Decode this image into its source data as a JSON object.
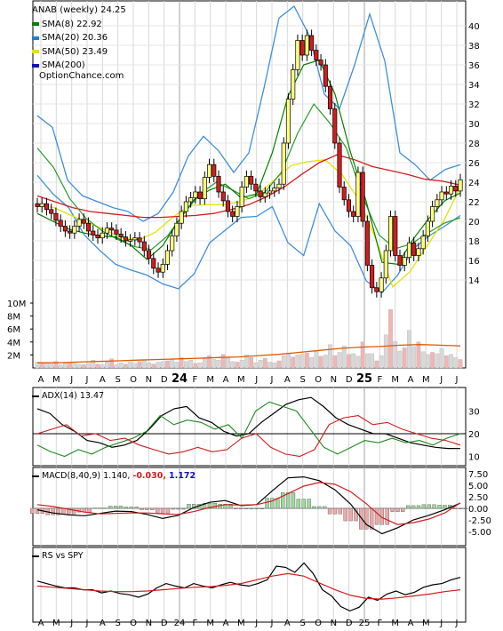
{
  "ticker_title": "ANAB (weekly) 24.25",
  "legend": [
    {
      "label": "SMA(8) 22.92",
      "color": "#008000"
    },
    {
      "label": "SMA(20) 20.36",
      "color": "#1c7fd1"
    },
    {
      "label": "SMA(50) 23.49",
      "color": "#e3e300"
    },
    {
      "label": "SMA(200)",
      "color": "#1010c8"
    }
  ],
  "source": "OptionChance.com",
  "colors": {
    "up": "#ffff80",
    "down": "#d11d1d",
    "bb": "#3f8fd8",
    "sma8": "#008000",
    "sma20": "#1c7fd1",
    "sma50": "#e3e300",
    "sma200": "#d11d1d",
    "volume_up": "#d8d8d8",
    "volume_down": "#f2b4b4",
    "volume_avg": "#e05a00"
  },
  "x_axis": {
    "labels": [
      "A",
      "M",
      "J",
      "J",
      "A",
      "S",
      "O",
      "N",
      "D",
      "24",
      "F",
      "M",
      "A",
      "M",
      "J",
      "J",
      "A",
      "S",
      "O",
      "N",
      "D",
      "25",
      "F",
      "M",
      "A",
      "M",
      "J",
      "J"
    ],
    "year_labels": [
      "24",
      "25"
    ]
  },
  "price_axis": {
    "ticks": [
      "40",
      "38",
      "36",
      "34",
      "32",
      "30",
      "28",
      "26",
      "24",
      "22",
      "20",
      "18",
      "16",
      "14"
    ]
  },
  "volume_axis": {
    "ticks": [
      "10M",
      "8M",
      "6M",
      "4M",
      "2M"
    ]
  },
  "adx_panel": {
    "label": "ADX(14) 13.47",
    "ticks": [
      "30",
      "20",
      "10"
    ]
  },
  "macd_panel": {
    "label": "MACD(8,40,9) 1.140,",
    "value2": "-0.030,",
    "value3": "1.172",
    "ticks": [
      "7.50",
      "5.00",
      "2.50",
      "0.00",
      "-2.50",
      "-5.00"
    ]
  },
  "rs_panel": {
    "label": "RS vs SPY"
  },
  "chart_data": [
    {
      "type": "candlestick",
      "title": "ANAB (weekly) 24.25",
      "ylim": [
        12,
        42
      ],
      "series": [
        {
          "name": "price",
          "values": [
            21.5,
            21.8,
            21.2,
            20.8,
            20.1,
            19.5,
            19.0,
            18.8,
            19.5,
            20.2,
            19.8,
            19.0,
            18.6,
            18.3,
            18.8,
            19.3,
            19.1,
            18.7,
            18.4,
            18.0,
            18.1,
            18.3,
            17.9,
            17.0,
            16.2,
            15.2,
            14.8,
            15.6,
            17.0,
            18.5,
            19.8,
            21.0,
            22.0,
            22.4,
            23.0,
            22.3,
            24.5,
            25.8,
            24.6,
            23.0,
            22.1,
            21.0,
            20.5,
            21.5,
            23.5,
            24.6,
            23.8,
            23.1,
            22.5,
            22.9,
            23.1,
            23.4,
            23.8,
            28.0,
            32.5,
            35.5,
            38.5,
            37.0,
            39.0,
            37.5,
            36.5,
            36.0,
            33.8,
            31.5,
            28.0,
            23.5,
            22.2,
            21.0,
            20.5,
            25.0,
            20.0,
            15.5,
            13.2,
            12.8,
            14.2,
            17.0,
            20.5,
            16.5,
            15.5,
            16.3,
            17.8,
            16.5,
            17.2,
            18.5,
            20.0,
            21.5,
            22.2,
            23.0,
            22.8,
            23.6,
            23.1,
            24.25
          ]
        },
        {
          "name": "SMA(8)",
          "values": [
            20.8,
            20.0,
            19.2,
            18.8,
            18.5,
            18.4,
            17.5,
            16.1,
            17.5,
            20.0,
            22.2,
            23.2,
            23.8,
            22.4,
            22.8,
            27.0,
            32.8,
            36.0,
            36.5,
            33.0,
            27.0,
            22.0,
            15.8,
            15.6,
            18.2,
            20.3,
            22.1,
            22.9
          ]
        },
        {
          "name": "SMA(20)",
          "values": [
            27.5,
            25.5,
            22.3,
            20.3,
            19.0,
            18.1,
            17.4,
            17.1,
            18.5,
            20.8,
            22.8,
            24.0,
            23.2,
            22.3,
            23.0,
            25.0,
            29.0,
            32.0,
            30.0,
            27.5,
            22.5,
            18.6,
            17.2,
            17.7,
            18.8,
            19.8,
            20.36
          ]
        },
        {
          "name": "SMA(50)",
          "values": [
            21.6,
            21.4,
            20.6,
            19.9,
            19.1,
            18.3,
            18.1,
            18.9,
            20.4,
            21.6,
            21.7,
            21.7,
            22.0,
            22.7,
            24.2,
            25.7,
            26.1,
            26.3,
            24.8,
            22.2,
            18.2,
            13.3,
            14.8,
            17.4,
            20.0,
            23.49
          ]
        },
        {
          "name": "SMA(200)",
          "values": [
            22.6,
            22.0,
            21.4,
            21.0,
            20.8,
            20.6,
            20.4,
            20.4,
            20.5,
            20.6,
            20.8,
            21.2,
            21.7,
            22.5,
            23.5,
            24.8,
            26.0,
            26.8,
            26.3,
            25.6,
            25.2,
            24.8,
            24.3,
            24.1,
            23.7
          ]
        },
        {
          "name": "BB upper",
          "values": [
            30.8,
            29.6,
            24.2,
            22.6,
            22.0,
            21.4,
            21.0,
            20.0,
            20.8,
            23.0,
            26.7,
            28.7,
            27.2,
            25.0,
            27.0,
            33.6,
            40.8,
            42.0,
            39.0,
            33.0,
            31.5,
            36.0,
            41.2,
            36.4,
            27.0,
            25.8,
            24.2,
            25.3,
            25.8
          ]
        },
        {
          "name": "BB lower",
          "values": [
            24.7,
            22.8,
            21.4,
            18.6,
            17.0,
            15.6,
            15.0,
            14.5,
            13.6,
            13.1,
            14.6,
            17.8,
            19.1,
            20.4,
            20.5,
            21.5,
            17.8,
            16.5,
            21.8,
            19.0,
            17.5,
            13.9,
            12.7,
            14.5,
            17.2,
            18.5,
            19.5,
            20.6
          ]
        }
      ]
    },
    {
      "type": "bar",
      "title": "Volume",
      "ylim": [
        0,
        10000000
      ],
      "series": [
        {
          "name": "Volume",
          "values": [
            0.9,
            0.7,
            0.8,
            0.6,
            1.0,
            0.5,
            0.7,
            0.8,
            0.9,
            0.6,
            0.5,
            0.7,
            1.2,
            0.6,
            0.5,
            0.9,
            1.4,
            0.5,
            0.8,
            0.6,
            0.9,
            0.7,
            1.0,
            1.2,
            0.8,
            0.6,
            0.9,
            1.0,
            1.1,
            1.4,
            0.9,
            1.6,
            1.0,
            1.2,
            0.7,
            0.8,
            1.6,
            1.9,
            1.3,
            1.2,
            2.1,
            1.6,
            1.0,
            0.9,
            1.2,
            2.0,
            1.6,
            0.8,
            1.2,
            1.5,
            0.9,
            0.8,
            1.1,
            1.9,
            2.2,
            1.7,
            2.0,
            2.1,
            2.3,
            1.6,
            2.5,
            1.8,
            2.0,
            3.6,
            1.9,
            2.4,
            3.4,
            2.1,
            2.2,
            1.8,
            4.0,
            2.2,
            2.2,
            1.1,
            1.9,
            5.1,
            9.0,
            4.1,
            2.6,
            3.1,
            5.8,
            3.3,
            4.0,
            2.5,
            2.1,
            2.4,
            2.2,
            3.0,
            1.9,
            2.1,
            1.6,
            1.3
          ]
        },
        {
          "name": "Average volume",
          "values": [
            0.8,
            0.8,
            0.9,
            1.0,
            1.1,
            1.2,
            1.3,
            1.4,
            1.5,
            1.6,
            1.7,
            1.9,
            2.1,
            2.4,
            2.7,
            3.0,
            3.2,
            3.3,
            3.5,
            3.6,
            3.5,
            3.4
          ]
        }
      ]
    },
    {
      "type": "line",
      "title": "ADX(14) 13.47",
      "ylim": [
        7,
        37
      ],
      "series": [
        {
          "name": "ADX",
          "values": [
            31,
            29,
            24,
            21,
            17,
            16,
            14,
            15,
            17,
            22,
            28,
            31,
            32,
            27,
            25,
            21,
            19,
            20,
            25,
            29,
            33,
            35,
            36,
            32,
            27,
            24,
            22,
            20,
            20,
            18,
            16,
            15,
            14,
            13.5,
            13.47
          ]
        },
        {
          "name": "+DI",
          "values": [
            15,
            12,
            10,
            13,
            11,
            14,
            16,
            18,
            21,
            28,
            24,
            26,
            25,
            22,
            24,
            18,
            30,
            34,
            32,
            30,
            22,
            14,
            11,
            14,
            17,
            16,
            18,
            16,
            17,
            15,
            18,
            20
          ]
        },
        {
          "name": "-DI",
          "values": [
            20,
            22,
            24,
            19,
            20,
            17,
            18,
            15,
            13,
            11,
            12,
            14,
            12,
            13,
            18,
            20,
            14,
            11,
            10,
            13,
            24,
            27,
            28,
            24,
            25,
            22,
            20,
            18,
            17,
            15
          ]
        }
      ]
    },
    {
      "type": "line",
      "title": "MACD(8,40,9) 1.140, -0.030, 1.172",
      "ylim": [
        -7,
        9
      ],
      "series": [
        {
          "name": "MACD",
          "values": [
            -0.3,
            -1.0,
            -1.4,
            -1.6,
            -1.1,
            -0.6,
            -0.7,
            -1.3,
            -2.2,
            -1.5,
            0.2,
            1.3,
            1.7,
            0.6,
            0.8,
            3.8,
            6.6,
            6.8,
            6.0,
            4.0,
            0.9,
            -3.5,
            -5.5,
            -4.2,
            -2.5,
            -1.5,
            -0.3,
            1.14
          ]
        },
        {
          "name": "Signal",
          "values": [
            0.8,
            0.4,
            -0.2,
            -0.8,
            -1.2,
            -1.1,
            -1.0,
            -1.0,
            -1.2,
            -1.3,
            -0.7,
            0.2,
            0.8,
            0.7,
            0.8,
            1.6,
            3.2,
            4.8,
            5.6,
            5.2,
            3.6,
            1.0,
            -2.0,
            -3.5,
            -3.1,
            -2.3,
            -1.0,
            1.172
          ]
        },
        {
          "name": "Histogram",
          "values": [
            -1.1,
            -1.4,
            -1.2,
            -0.8,
            0.1,
            0.5,
            0.3,
            -0.3,
            -1.0,
            -0.2,
            0.9,
            1.1,
            0.9,
            -0.1,
            0.0,
            2.2,
            3.4,
            2.0,
            0.4,
            -1.2,
            -2.7,
            -4.5,
            -3.5,
            -0.7,
            0.6,
            0.8,
            0.7,
            -0.03
          ]
        }
      ]
    },
    {
      "type": "line",
      "title": "RS vs SPY",
      "series": [
        {
          "name": "RS",
          "values": [
            0.66,
            0.62,
            0.58,
            0.55,
            0.55,
            0.52,
            0.52,
            0.47,
            0.5,
            0.46,
            0.44,
            0.4,
            0.45,
            0.55,
            0.62,
            0.58,
            0.55,
            0.62,
            0.58,
            0.55,
            0.6,
            0.64,
            0.6,
            0.58,
            0.62,
            0.68,
            0.9,
            0.88,
            0.8,
            0.95,
            0.78,
            0.52,
            0.42,
            0.25,
            0.18,
            0.24,
            0.4,
            0.35,
            0.45,
            0.5,
            0.44,
            0.48,
            0.56,
            0.6,
            0.62,
            0.68,
            0.72
          ]
        },
        {
          "name": "RS average",
          "values": [
            0.58,
            0.56,
            0.54,
            0.52,
            0.5,
            0.49,
            0.49,
            0.5,
            0.52,
            0.54,
            0.56,
            0.57,
            0.59,
            0.62,
            0.68,
            0.74,
            0.78,
            0.74,
            0.63,
            0.52,
            0.43,
            0.38,
            0.37,
            0.39,
            0.42,
            0.45,
            0.49,
            0.52
          ]
        }
      ]
    }
  ]
}
